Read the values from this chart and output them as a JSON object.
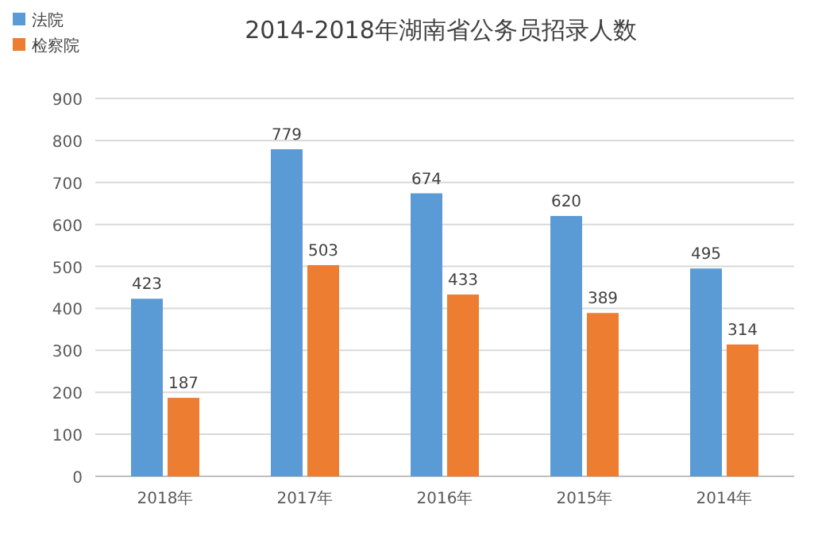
{
  "chart_data": {
    "type": "bar",
    "title": "2014-2018年湖南省公务员招录人数",
    "categories": [
      "2018年",
      "2017年",
      "2016年",
      "2015年",
      "2014年"
    ],
    "series": [
      {
        "name": "法院",
        "color": "#5b9bd5",
        "values": [
          423,
          779,
          674,
          620,
          495
        ]
      },
      {
        "name": "检察院",
        "color": "#ed7d31",
        "values": [
          187,
          503,
          433,
          389,
          314
        ]
      }
    ],
    "ylim": [
      0,
      900
    ],
    "yticks": [
      0,
      100,
      200,
      300,
      400,
      500,
      600,
      700,
      800,
      900
    ],
    "grid": "y",
    "legend": "top left",
    "data_labels": true
  }
}
